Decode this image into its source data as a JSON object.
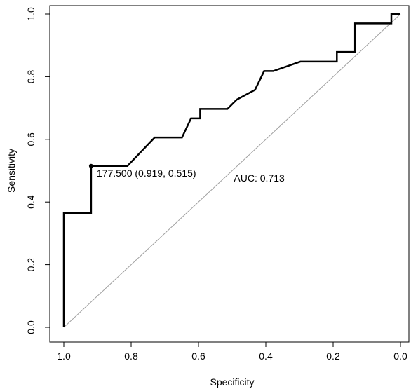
{
  "chart_data": {
    "type": "line",
    "title": "",
    "xlabel": "Specificity",
    "ylabel": "Sensitivity",
    "xlim": [
      1.0,
      0.0
    ],
    "ylim": [
      0.0,
      1.0
    ],
    "x_reversed": true,
    "grid": false,
    "x_ticks": [
      1.0,
      0.8,
      0.6,
      0.4,
      0.2,
      0.0
    ],
    "x_tick_labels": [
      "1.0",
      "0.8",
      "0.6",
      "0.4",
      "0.2",
      "0.0"
    ],
    "y_ticks": [
      0.0,
      0.2,
      0.4,
      0.6,
      0.8,
      1.0
    ],
    "y_tick_labels": [
      "0.0",
      "0.2",
      "0.4",
      "0.6",
      "0.8",
      "1.0"
    ],
    "series": [
      {
        "color": "#000000",
        "points": [
          {
            "x": 1.0,
            "y": 0.0
          },
          {
            "x": 1.0,
            "y": 0.364
          },
          {
            "x": 0.919,
            "y": 0.364
          },
          {
            "x": 0.919,
            "y": 0.515
          },
          {
            "x": 0.811,
            "y": 0.515
          },
          {
            "x": 0.73,
            "y": 0.606
          },
          {
            "x": 0.649,
            "y": 0.606
          },
          {
            "x": 0.622,
            "y": 0.667
          },
          {
            "x": 0.595,
            "y": 0.667
          },
          {
            "x": 0.595,
            "y": 0.697
          },
          {
            "x": 0.514,
            "y": 0.697
          },
          {
            "x": 0.486,
            "y": 0.727
          },
          {
            "x": 0.432,
            "y": 0.758
          },
          {
            "x": 0.405,
            "y": 0.818
          },
          {
            "x": 0.378,
            "y": 0.818
          },
          {
            "x": 0.297,
            "y": 0.848
          },
          {
            "x": 0.189,
            "y": 0.848
          },
          {
            "x": 0.189,
            "y": 0.879
          },
          {
            "x": 0.135,
            "y": 0.879
          },
          {
            "x": 0.135,
            "y": 0.97
          },
          {
            "x": 0.027,
            "y": 0.97
          },
          {
            "x": 0.027,
            "y": 1.0
          },
          {
            "x": 0.0,
            "y": 1.0
          }
        ]
      }
    ],
    "reference_line": {
      "from": [
        1.0,
        0.0
      ],
      "to": [
        0.0,
        1.0
      ],
      "color": "#a0a0a0"
    },
    "threshold_point": {
      "x": 0.919,
      "y": 0.515,
      "label": "177.500 (0.919, 0.515)"
    },
    "auc_label": "AUC: 0.713"
  }
}
